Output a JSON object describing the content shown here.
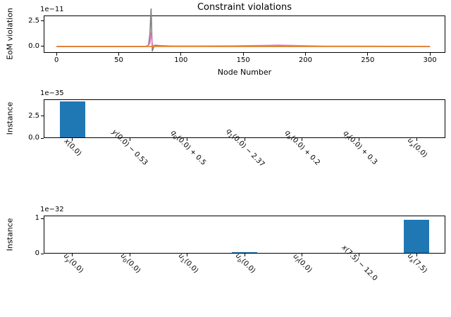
{
  "figure_title": "Constraint violations",
  "accent_colors": {
    "bar_blue": "#1f77b4",
    "line_orange": "#e2801f",
    "line_gray": "#7f7f7f",
    "line_pink": "#e377c2",
    "spine": "#000000"
  },
  "chart_data": [
    {
      "type": "line",
      "title": "Constraint violations",
      "xlabel": "Node Number",
      "ylabel": "EoM violation",
      "offset_label": "1e−11",
      "xticks": [
        0,
        50,
        100,
        150,
        200,
        250,
        300
      ],
      "ytick_labels": [
        "0.0",
        "2.5"
      ],
      "ytick_values": [
        0,
        2.5
      ],
      "xlim": [
        -10.3,
        312.4
      ],
      "ylim": [
        -0.63,
        3.05
      ],
      "grid": false,
      "legend": "none",
      "series": [
        {
          "name": "eom-violation-gray",
          "color": "#7f7f7f",
          "points": [
            [
              0,
              0
            ],
            [
              72,
              0
            ],
            [
              74,
              0.15
            ],
            [
              75,
              1.2
            ],
            [
              76,
              3.7
            ],
            [
              76.6,
              1.0
            ],
            [
              77,
              -0.45
            ],
            [
              77.6,
              -0.2
            ],
            [
              79,
              0.12
            ],
            [
              83,
              0.08
            ],
            [
              95,
              0.03
            ],
            [
              130,
              0.01
            ],
            [
              300,
              0
            ]
          ]
        },
        {
          "name": "eom-violation-pink",
          "color": "#e377c2",
          "points": [
            [
              0,
              0
            ],
            [
              73,
              0
            ],
            [
              75,
              0.3
            ],
            [
              76,
              1.35
            ],
            [
              77,
              0.15
            ],
            [
              80,
              0.02
            ],
            [
              140,
              0.05
            ],
            [
              165,
              0.09
            ],
            [
              178,
              0.13
            ],
            [
              195,
              0.08
            ],
            [
              215,
              0.03
            ],
            [
              300,
              0.01
            ]
          ]
        },
        {
          "name": "eom-violation-orange",
          "color": "#e2801f",
          "points": [
            [
              0,
              0
            ],
            [
              300,
              0
            ]
          ]
        }
      ]
    },
    {
      "type": "bar",
      "ylabel": "Instance",
      "offset_label": "1e−35",
      "ytick_labels": [
        "0.0",
        "2.5"
      ],
      "ytick_values": [
        0,
        2.5
      ],
      "ylim": [
        0,
        4.43
      ],
      "bar_color": "#1f77b4",
      "categories": [
        {
          "text": "x(0.0)",
          "pre": "x",
          "sub": "",
          "post": "(0.0)"
        },
        {
          "text": "y(0.0) − 0.53",
          "pre": "y",
          "sub": "",
          "post": "(0.0) − 0.53"
        },
        {
          "text": "q0(0.0) + 0.5",
          "pre": "q",
          "sub": "0",
          "post": "(0.0) + 0.5"
        },
        {
          "text": "q1(0.0) − 2.37",
          "pre": "q",
          "sub": "1",
          "post": "(0.0) − 2.37"
        },
        {
          "text": "qb(0.0) + 0.2",
          "pre": "q",
          "sub": "b",
          "post": "(0.0) + 0.2"
        },
        {
          "text": "qf(0.0) + 0.3",
          "pre": "q",
          "sub": "f",
          "post": "(0.0) + 0.3"
        },
        {
          "text": "ux(0.0)",
          "pre": "u",
          "sub": "x",
          "post": "(0.0)"
        }
      ],
      "values": [
        4.2,
        0,
        0,
        0,
        0,
        0,
        0
      ]
    },
    {
      "type": "bar",
      "ylabel": "Instance",
      "offset_label": "1e−32",
      "ytick_labels": [
        "0",
        "1"
      ],
      "ytick_values": [
        0,
        1
      ],
      "ylim": [
        0,
        1.08
      ],
      "bar_color": "#1f77b4",
      "categories": [
        {
          "text": "uy(0.0)",
          "pre": "u",
          "sub": "y",
          "post": "(0.0)"
        },
        {
          "text": "u0(0.0)",
          "pre": "u",
          "sub": "0",
          "post": "(0.0)"
        },
        {
          "text": "u1(0.0)",
          "pre": "u",
          "sub": "1",
          "post": "(0.0)"
        },
        {
          "text": "ub(0.0)",
          "pre": "u",
          "sub": "b",
          "post": "(0.0)"
        },
        {
          "text": "uf(0.0)",
          "pre": "u",
          "sub": "f",
          "post": "(0.0)"
        },
        {
          "text": "x(7.5) − 12.0",
          "pre": "x",
          "sub": "",
          "post": "(7.5) − 12.0"
        },
        {
          "text": "ux(7.5)",
          "pre": "u",
          "sub": "x",
          "post": "(7.5)"
        }
      ],
      "values": [
        0,
        0,
        0,
        0.04,
        0,
        0,
        0.97
      ]
    }
  ]
}
